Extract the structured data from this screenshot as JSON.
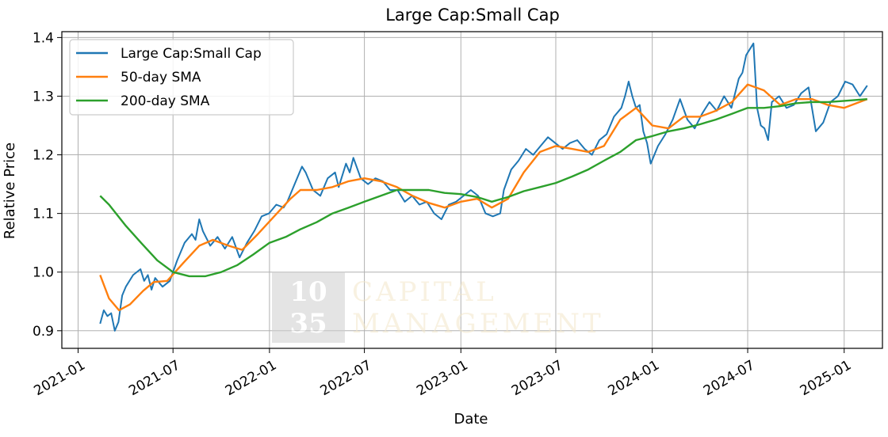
{
  "chart_data": {
    "type": "line",
    "title": "Large Cap:Small Cap",
    "xlabel": "Date",
    "ylabel": "Relative Price",
    "xlim": [
      "2020-12-01",
      "2025-03-15"
    ],
    "ylim": [
      0.87,
      1.41
    ],
    "grid": true,
    "legend_position": "top-left",
    "x_ticks": [
      "2021-01",
      "2021-07",
      "2022-01",
      "2022-07",
      "2023-01",
      "2023-07",
      "2024-01",
      "2024-07",
      "2025-01"
    ],
    "y_ticks": [
      "0.9",
      "1.0",
      "1.1",
      "1.2",
      "1.3",
      "1.4"
    ],
    "series": [
      {
        "name": "Large Cap:Small Cap",
        "color": "#1f77b4",
        "points": [
          [
            "2021-02-12",
            0.912
          ],
          [
            "2021-02-19",
            0.935
          ],
          [
            "2021-02-26",
            0.925
          ],
          [
            "2021-03-05",
            0.93
          ],
          [
            "2021-03-12",
            0.9
          ],
          [
            "2021-03-19",
            0.915
          ],
          [
            "2021-03-26",
            0.96
          ],
          [
            "2021-04-02",
            0.975
          ],
          [
            "2021-04-16",
            0.995
          ],
          [
            "2021-04-30",
            1.005
          ],
          [
            "2021-05-07",
            0.985
          ],
          [
            "2021-05-14",
            0.995
          ],
          [
            "2021-05-21",
            0.97
          ],
          [
            "2021-05-28",
            0.99
          ],
          [
            "2021-06-11",
            0.975
          ],
          [
            "2021-06-25",
            0.985
          ],
          [
            "2021-07-09",
            1.02
          ],
          [
            "2021-07-23",
            1.05
          ],
          [
            "2021-08-06",
            1.065
          ],
          [
            "2021-08-13",
            1.055
          ],
          [
            "2021-08-20",
            1.09
          ],
          [
            "2021-08-27",
            1.07
          ],
          [
            "2021-09-10",
            1.045
          ],
          [
            "2021-09-24",
            1.06
          ],
          [
            "2021-10-08",
            1.04
          ],
          [
            "2021-10-22",
            1.06
          ],
          [
            "2021-11-05",
            1.025
          ],
          [
            "2021-11-19",
            1.05
          ],
          [
            "2021-12-03",
            1.07
          ],
          [
            "2021-12-17",
            1.095
          ],
          [
            "2021-12-31",
            1.1
          ],
          [
            "2022-01-14",
            1.115
          ],
          [
            "2022-01-28",
            1.11
          ],
          [
            "2022-02-04",
            1.12
          ],
          [
            "2022-02-18",
            1.15
          ],
          [
            "2022-03-04",
            1.18
          ],
          [
            "2022-03-11",
            1.17
          ],
          [
            "2022-03-25",
            1.14
          ],
          [
            "2022-04-08",
            1.13
          ],
          [
            "2022-04-22",
            1.16
          ],
          [
            "2022-05-06",
            1.17
          ],
          [
            "2022-05-13",
            1.145
          ],
          [
            "2022-05-27",
            1.185
          ],
          [
            "2022-06-03",
            1.17
          ],
          [
            "2022-06-10",
            1.195
          ],
          [
            "2022-06-24",
            1.16
          ],
          [
            "2022-07-08",
            1.15
          ],
          [
            "2022-07-22",
            1.16
          ],
          [
            "2022-08-05",
            1.155
          ],
          [
            "2022-08-19",
            1.14
          ],
          [
            "2022-09-02",
            1.14
          ],
          [
            "2022-09-16",
            1.12
          ],
          [
            "2022-09-30",
            1.13
          ],
          [
            "2022-10-14",
            1.115
          ],
          [
            "2022-10-28",
            1.12
          ],
          [
            "2022-11-11",
            1.1
          ],
          [
            "2022-11-25",
            1.09
          ],
          [
            "2022-12-09",
            1.115
          ],
          [
            "2022-12-23",
            1.12
          ],
          [
            "2023-01-06",
            1.13
          ],
          [
            "2023-01-20",
            1.14
          ],
          [
            "2023-02-03",
            1.13
          ],
          [
            "2023-02-17",
            1.1
          ],
          [
            "2023-03-03",
            1.095
          ],
          [
            "2023-03-17",
            1.1
          ],
          [
            "2023-03-24",
            1.14
          ],
          [
            "2023-04-07",
            1.175
          ],
          [
            "2023-04-21",
            1.19
          ],
          [
            "2023-05-05",
            1.21
          ],
          [
            "2023-05-19",
            1.2
          ],
          [
            "2023-06-02",
            1.215
          ],
          [
            "2023-06-16",
            1.23
          ],
          [
            "2023-06-30",
            1.22
          ],
          [
            "2023-07-14",
            1.21
          ],
          [
            "2023-07-28",
            1.22
          ],
          [
            "2023-08-11",
            1.225
          ],
          [
            "2023-08-25",
            1.21
          ],
          [
            "2023-09-08",
            1.2
          ],
          [
            "2023-09-22",
            1.225
          ],
          [
            "2023-10-06",
            1.235
          ],
          [
            "2023-10-20",
            1.265
          ],
          [
            "2023-11-03",
            1.28
          ],
          [
            "2023-11-10",
            1.3
          ],
          [
            "2023-11-17",
            1.325
          ],
          [
            "2023-11-24",
            1.3
          ],
          [
            "2023-12-01",
            1.28
          ],
          [
            "2023-12-08",
            1.285
          ],
          [
            "2023-12-15",
            1.24
          ],
          [
            "2023-12-22",
            1.22
          ],
          [
            "2023-12-29",
            1.185
          ],
          [
            "2024-01-12",
            1.215
          ],
          [
            "2024-01-26",
            1.235
          ],
          [
            "2024-02-09",
            1.26
          ],
          [
            "2024-02-23",
            1.295
          ],
          [
            "2024-03-08",
            1.26
          ],
          [
            "2024-03-22",
            1.245
          ],
          [
            "2024-04-05",
            1.27
          ],
          [
            "2024-04-19",
            1.29
          ],
          [
            "2024-05-03",
            1.275
          ],
          [
            "2024-05-17",
            1.3
          ],
          [
            "2024-05-31",
            1.28
          ],
          [
            "2024-06-14",
            1.33
          ],
          [
            "2024-06-21",
            1.34
          ],
          [
            "2024-06-28",
            1.37
          ],
          [
            "2024-07-05",
            1.38
          ],
          [
            "2024-07-12",
            1.39
          ],
          [
            "2024-07-19",
            1.28
          ],
          [
            "2024-07-26",
            1.25
          ],
          [
            "2024-08-02",
            1.245
          ],
          [
            "2024-08-09",
            1.225
          ],
          [
            "2024-08-16",
            1.29
          ],
          [
            "2024-08-30",
            1.3
          ],
          [
            "2024-09-13",
            1.28
          ],
          [
            "2024-09-27",
            1.285
          ],
          [
            "2024-10-11",
            1.305
          ],
          [
            "2024-10-25",
            1.315
          ],
          [
            "2024-11-08",
            1.24
          ],
          [
            "2024-11-22",
            1.255
          ],
          [
            "2024-12-06",
            1.29
          ],
          [
            "2024-12-20",
            1.3
          ],
          [
            "2025-01-03",
            1.325
          ],
          [
            "2025-01-17",
            1.32
          ],
          [
            "2025-01-31",
            1.3
          ],
          [
            "2025-02-14",
            1.318
          ]
        ]
      },
      {
        "name": "50-day SMA",
        "color": "#ff7f0e",
        "points": [
          [
            "2021-02-12",
            0.995
          ],
          [
            "2021-03-01",
            0.955
          ],
          [
            "2021-03-20",
            0.935
          ],
          [
            "2021-04-10",
            0.945
          ],
          [
            "2021-05-05",
            0.968
          ],
          [
            "2021-05-25",
            0.983
          ],
          [
            "2021-06-20",
            0.985
          ],
          [
            "2021-07-20",
            1.015
          ],
          [
            "2021-08-20",
            1.045
          ],
          [
            "2021-09-15",
            1.055
          ],
          [
            "2021-10-15",
            1.045
          ],
          [
            "2021-11-10",
            1.038
          ],
          [
            "2021-12-10",
            1.065
          ],
          [
            "2022-01-10",
            1.095
          ],
          [
            "2022-02-10",
            1.125
          ],
          [
            "2022-03-01",
            1.14
          ],
          [
            "2022-04-01",
            1.14
          ],
          [
            "2022-05-01",
            1.145
          ],
          [
            "2022-06-01",
            1.155
          ],
          [
            "2022-07-01",
            1.16
          ],
          [
            "2022-08-01",
            1.155
          ],
          [
            "2022-09-01",
            1.145
          ],
          [
            "2022-10-01",
            1.13
          ],
          [
            "2022-11-01",
            1.118
          ],
          [
            "2022-12-01",
            1.11
          ],
          [
            "2023-01-01",
            1.12
          ],
          [
            "2023-02-01",
            1.125
          ],
          [
            "2023-03-01",
            1.11
          ],
          [
            "2023-04-01",
            1.125
          ],
          [
            "2023-05-01",
            1.17
          ],
          [
            "2023-06-01",
            1.205
          ],
          [
            "2023-07-01",
            1.215
          ],
          [
            "2023-08-01",
            1.21
          ],
          [
            "2023-09-01",
            1.205
          ],
          [
            "2023-10-01",
            1.215
          ],
          [
            "2023-11-01",
            1.26
          ],
          [
            "2023-12-01",
            1.28
          ],
          [
            "2024-01-01",
            1.25
          ],
          [
            "2024-02-01",
            1.245
          ],
          [
            "2024-03-01",
            1.265
          ],
          [
            "2024-04-01",
            1.265
          ],
          [
            "2024-05-01",
            1.275
          ],
          [
            "2024-06-01",
            1.29
          ],
          [
            "2024-07-01",
            1.32
          ],
          [
            "2024-08-01",
            1.31
          ],
          [
            "2024-09-01",
            1.285
          ],
          [
            "2024-10-01",
            1.295
          ],
          [
            "2024-11-01",
            1.295
          ],
          [
            "2024-12-01",
            1.285
          ],
          [
            "2025-01-01",
            1.28
          ],
          [
            "2025-02-14",
            1.295
          ]
        ]
      },
      {
        "name": "200-day SMA",
        "color": "#2ca02c",
        "points": [
          [
            "2021-02-12",
            1.13
          ],
          [
            "2021-03-01",
            1.115
          ],
          [
            "2021-04-01",
            1.08
          ],
          [
            "2021-05-01",
            1.05
          ],
          [
            "2021-06-01",
            1.02
          ],
          [
            "2021-07-01",
            1.0
          ],
          [
            "2021-08-01",
            0.993
          ],
          [
            "2021-09-01",
            0.993
          ],
          [
            "2021-10-01",
            1.0
          ],
          [
            "2021-11-01",
            1.012
          ],
          [
            "2021-12-01",
            1.03
          ],
          [
            "2022-01-01",
            1.05
          ],
          [
            "2022-02-01",
            1.06
          ],
          [
            "2022-03-01",
            1.073
          ],
          [
            "2022-04-01",
            1.085
          ],
          [
            "2022-05-01",
            1.1
          ],
          [
            "2022-06-01",
            1.11
          ],
          [
            "2022-07-01",
            1.12
          ],
          [
            "2022-08-01",
            1.13
          ],
          [
            "2022-09-01",
            1.14
          ],
          [
            "2022-10-01",
            1.14
          ],
          [
            "2022-11-01",
            1.14
          ],
          [
            "2022-12-01",
            1.135
          ],
          [
            "2023-01-01",
            1.133
          ],
          [
            "2023-02-01",
            1.128
          ],
          [
            "2023-03-01",
            1.12
          ],
          [
            "2023-04-01",
            1.128
          ],
          [
            "2023-05-01",
            1.138
          ],
          [
            "2023-06-01",
            1.145
          ],
          [
            "2023-07-01",
            1.152
          ],
          [
            "2023-08-01",
            1.163
          ],
          [
            "2023-09-01",
            1.175
          ],
          [
            "2023-10-01",
            1.19
          ],
          [
            "2023-11-01",
            1.205
          ],
          [
            "2023-12-01",
            1.225
          ],
          [
            "2024-01-01",
            1.232
          ],
          [
            "2024-02-01",
            1.24
          ],
          [
            "2024-03-01",
            1.245
          ],
          [
            "2024-04-01",
            1.252
          ],
          [
            "2024-05-01",
            1.26
          ],
          [
            "2024-06-01",
            1.27
          ],
          [
            "2024-07-01",
            1.28
          ],
          [
            "2024-08-01",
            1.28
          ],
          [
            "2024-09-01",
            1.283
          ],
          [
            "2024-10-01",
            1.288
          ],
          [
            "2024-11-01",
            1.29
          ],
          [
            "2024-12-01",
            1.29
          ],
          [
            "2025-01-01",
            1.292
          ],
          [
            "2025-02-14",
            1.295
          ]
        ]
      }
    ]
  },
  "watermark": {
    "logo_lines": [
      "10",
      "35"
    ],
    "text_lines": [
      "CAPITAL",
      "MANAGEMENT"
    ]
  }
}
